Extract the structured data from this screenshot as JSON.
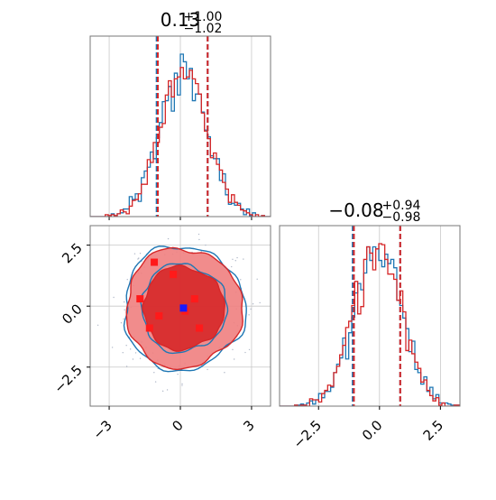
{
  "colors": {
    "blue": "#1f77b4",
    "red": "#d62728",
    "red_light": "#f08080",
    "grid": "#c8c8c8",
    "scatter": "#b0b8c8"
  },
  "chart_data": [
    {
      "type": "histogram",
      "panel": "top-left",
      "title_main": "0.13",
      "title_sup": "+1.00",
      "title_sub": "−1.02",
      "xlim": [
        -3.8,
        3.8
      ],
      "grid": true,
      "series": [
        {
          "color": "blue",
          "quantile_lines": [
            -1.0,
            1.15
          ]
        },
        {
          "color": "red",
          "quantile_lines": [
            -0.95,
            1.15
          ]
        }
      ]
    },
    {
      "type": "histogram",
      "panel": "bottom-right",
      "title_main": "−0.08",
      "title_sup": "+0.94",
      "title_sub": "−0.98",
      "xlim": [
        -4.1,
        3.3
      ],
      "xticks": [
        "−2.5",
        "0.0",
        "2.5"
      ],
      "xtick_values": [
        -2.5,
        0.0,
        2.5
      ],
      "grid": true,
      "series": [
        {
          "color": "blue",
          "quantile_lines": [
            -1.1,
            0.85
          ]
        },
        {
          "color": "red",
          "quantile_lines": [
            -1.05,
            0.85
          ]
        }
      ]
    },
    {
      "type": "contour",
      "panel": "bottom-left",
      "xlim": [
        -3.8,
        3.8
      ],
      "ylim": [
        -4.1,
        3.3
      ],
      "xticks": [
        "−3",
        "0",
        "3"
      ],
      "xtick_values": [
        -3,
        0,
        3
      ],
      "yticks": [
        "2.5",
        "0.0",
        "−2.5"
      ],
      "ytick_values": [
        2.5,
        0.0,
        -2.5
      ],
      "grid": true,
      "highlight_points": [
        {
          "x": -1.1,
          "y": 1.8
        },
        {
          "x": -0.3,
          "y": 1.3
        },
        {
          "x": -1.7,
          "y": 0.3
        },
        {
          "x": 0.6,
          "y": 0.3
        },
        {
          "x": -0.9,
          "y": -0.4
        },
        {
          "x": 0.2,
          "y": -0.2
        },
        {
          "x": 0.8,
          "y": -0.9
        },
        {
          "x": -1.3,
          "y": -0.9
        }
      ],
      "center_point": {
        "x": 0.13,
        "y": -0.08
      }
    }
  ]
}
